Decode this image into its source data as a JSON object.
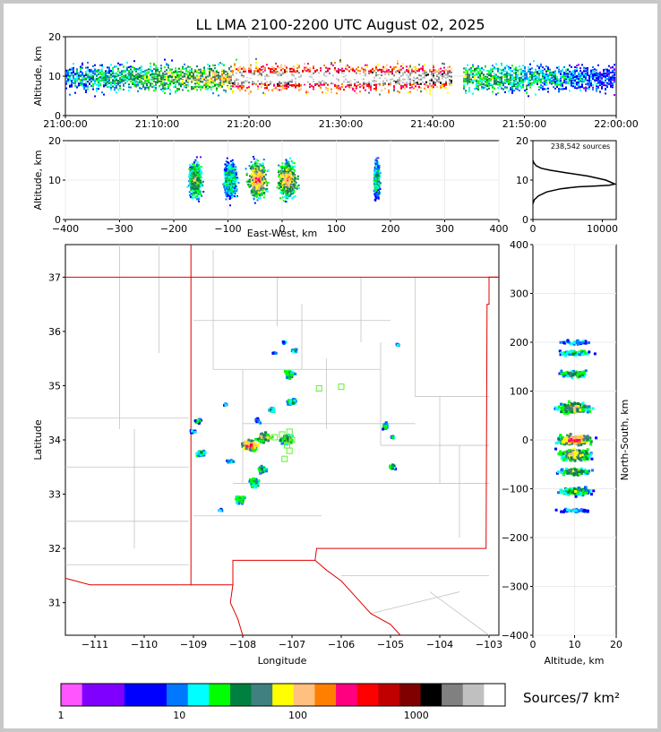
{
  "figure": {
    "title": "LL LMA 2100-2200 UTC August 02, 2025",
    "colorbar_label": "Sources/7 km²"
  },
  "chart_data": [
    {
      "panel": "time-height",
      "type": "heatmap",
      "ylabel": "Altitude, km",
      "xticks": [
        "21:00:00",
        "21:10:00",
        "21:20:00",
        "21:30:00",
        "21:40:00",
        "21:50:00",
        "22:00:00"
      ],
      "xlim": [
        "21:00:00",
        "22:00:00"
      ],
      "ylim": [
        0,
        20
      ],
      "yticks": [
        0,
        10,
        20
      ],
      "data_gap": [
        "21:42",
        "21:43"
      ],
      "core_altitude_km": 9.5
    },
    {
      "panel": "east-west-altitude",
      "type": "heatmap",
      "xlabel": "East-West, km",
      "ylabel": "Altitude, km",
      "xlim": [
        -400,
        400
      ],
      "xticks": [
        -400,
        -300,
        -200,
        -100,
        0,
        100,
        200,
        300,
        400
      ],
      "ylim": [
        0,
        20
      ],
      "yticks": [
        0,
        10,
        20
      ],
      "clusters_x_km": [
        -160,
        -95,
        -45,
        10,
        175
      ]
    },
    {
      "panel": "altitude-histogram",
      "type": "line",
      "annotation": "238,542 sources",
      "xlim": [
        0,
        12000
      ],
      "xticks": [
        0,
        10000
      ],
      "ylim": [
        0,
        20
      ],
      "yticks": [
        0,
        10,
        20
      ],
      "x": [
        0,
        200,
        800,
        2000,
        4000,
        6500,
        9000,
        11000,
        11800,
        10500,
        8000,
        5000,
        2500,
        1200,
        500,
        150,
        0
      ],
      "y": [
        4,
        5,
        6,
        7,
        7.8,
        8.3,
        8.5,
        8.7,
        9,
        10,
        11,
        11.8,
        12.5,
        13,
        13.6,
        14.3,
        15
      ]
    },
    {
      "panel": "plan-view",
      "type": "heatmap",
      "xlabel": "Longitude",
      "ylabel": "Latitude",
      "xlim": [
        -111.6,
        -102.8
      ],
      "xticks": [
        -111,
        -110,
        -109,
        -108,
        -107,
        -106,
        -105,
        -104,
        -103
      ],
      "ylim": [
        30.4,
        37.6
      ],
      "yticks": [
        31,
        32,
        33,
        34,
        35,
        36,
        37
      ],
      "station_markers": [
        [
          -107.2,
          34.1
        ],
        [
          -107.05,
          34.15
        ],
        [
          -107.0,
          34.0
        ],
        [
          -107.1,
          33.9
        ],
        [
          -107.05,
          33.8
        ],
        [
          -107.15,
          33.65
        ],
        [
          -106.45,
          34.95
        ],
        [
          -106.0,
          34.98
        ],
        [
          -107.35,
          34.05
        ]
      ]
    },
    {
      "panel": "north-south-altitude",
      "type": "heatmap",
      "xlabel": "Altitude, km",
      "ylabel": "North-South, km",
      "xlim": [
        0,
        20
      ],
      "xticks": [
        0,
        10,
        20
      ],
      "ylim": [
        -400,
        400
      ],
      "yticks": [
        -400,
        -300,
        -200,
        -100,
        0,
        100,
        200,
        300,
        400
      ]
    },
    {
      "panel": "colorbar",
      "type": "bar",
      "scale": "log",
      "tick_labels": [
        "1",
        "10",
        "100",
        "1000"
      ],
      "colors": [
        "#ff55ff",
        "#8000ff",
        "#8000ff",
        "#0000ff",
        "#0000ff",
        "#0078ff",
        "#00ffff",
        "#00ff00",
        "#008040",
        "#408080",
        "#ffff00",
        "#ffc080",
        "#ff8000",
        "#ff0080",
        "#ff0000",
        "#c00000",
        "#800000",
        "#000000",
        "#808080",
        "#c0c0c0",
        "#ffffff"
      ]
    }
  ]
}
